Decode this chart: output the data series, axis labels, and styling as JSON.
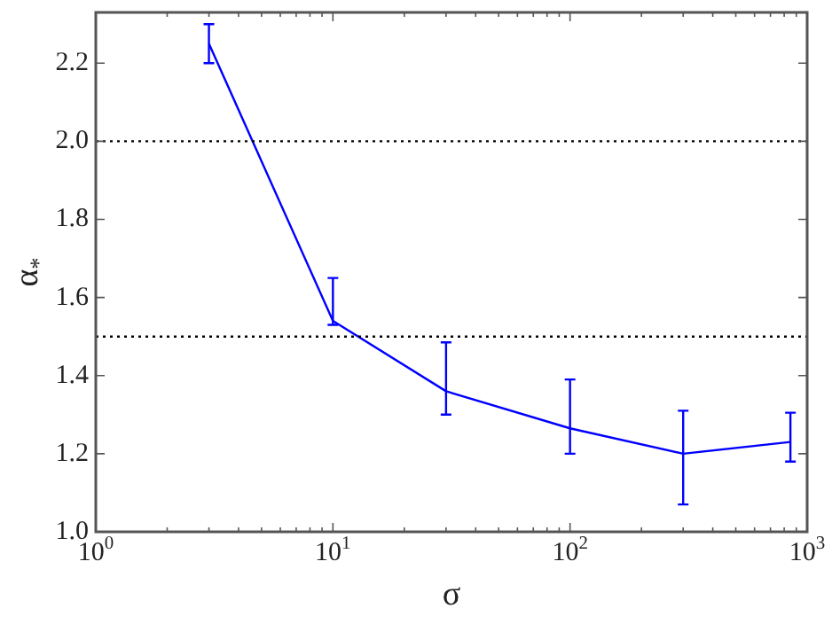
{
  "chart_data": {
    "type": "line",
    "xlabel": "σ",
    "ylabel": "α$_{*}$",
    "x": [
      3,
      10,
      30,
      100,
      300,
      850
    ],
    "series": [
      {
        "color": "#0000ff",
        "values": [
          2.25,
          1.54,
          1.36,
          1.265,
          1.2,
          1.23
        ],
        "errors": [
          [
            2.2,
            2.3
          ],
          [
            1.53,
            1.65
          ],
          [
            1.3,
            1.485
          ],
          [
            1.2,
            1.39
          ],
          [
            1.07,
            1.31
          ],
          [
            1.18,
            1.305
          ]
        ]
      }
    ],
    "log": "x",
    "xlim": [
      1,
      1000
    ],
    "xticks": [
      {
        "value": 1,
        "label": "10$^{0}$"
      },
      {
        "value": 10,
        "label": "10$^{1}$"
      },
      {
        "value": 100,
        "label": "10$^{2}$"
      },
      {
        "value": 1000,
        "label": "10$^{3}$"
      }
    ],
    "ylim": [
      1.0,
      2.33
    ],
    "yticks": [
      {
        "value": 1,
        "label": "1.0"
      },
      {
        "value": 1.2,
        "label": "1.2"
      },
      {
        "value": 1.4,
        "label": "1.4"
      },
      {
        "value": 1.6,
        "label": "1.6"
      },
      {
        "value": 1.8,
        "label": "1.8"
      },
      {
        "value": 2,
        "label": "2.0"
      },
      {
        "value": 2.2,
        "label": "2.2"
      }
    ],
    "ref_lines": [
      {
        "axis": "y",
        "value": 2.0,
        "color": "#000000",
        "line_style": "dotted"
      },
      {
        "axis": "y",
        "value": 1.5,
        "color": "#000000",
        "line_style": "dotted"
      }
    ],
    "grid": false,
    "legend": false,
    "marker": "none"
  }
}
